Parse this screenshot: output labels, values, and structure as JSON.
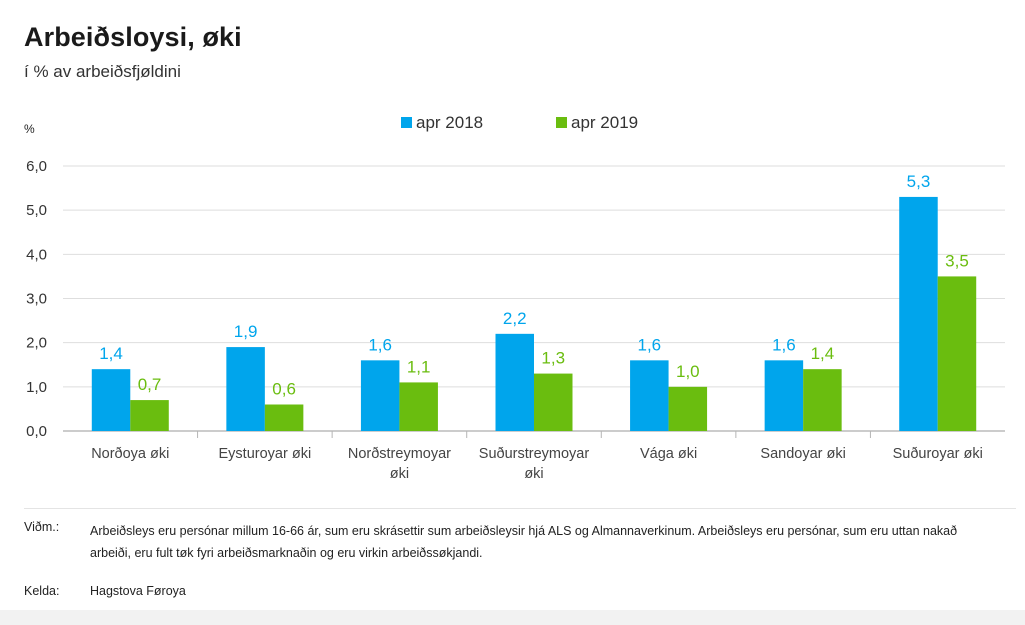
{
  "header": {
    "title": "Arbeiðsloysi, øki",
    "subtitle": "í % av arbeiðsfjøldini"
  },
  "chart_data": {
    "type": "bar",
    "ylabel": "%",
    "ylim": [
      0,
      6
    ],
    "yticks": [
      "0,0",
      "1,0",
      "2,0",
      "3,0",
      "4,0",
      "5,0",
      "6,0"
    ],
    "grid": true,
    "legend_position": "top-center",
    "categories": [
      [
        "Norðoya øki"
      ],
      [
        "Eysturoyar øki"
      ],
      [
        "Norðstreymoyar",
        "øki"
      ],
      [
        "Suðurstreymoyar",
        "øki"
      ],
      [
        "Vága øki"
      ],
      [
        "Sandoyar øki"
      ],
      [
        "Suðuroyar øki"
      ]
    ],
    "series": [
      {
        "name": "apr 2018",
        "color": "#00a5ec",
        "values": [
          1.4,
          1.9,
          1.6,
          2.2,
          1.6,
          1.6,
          5.3
        ],
        "labels": [
          "1,4",
          "1,9",
          "1,6",
          "2,2",
          "1,6",
          "1,6",
          "5,3"
        ]
      },
      {
        "name": "apr 2019",
        "color": "#6abd0f",
        "values": [
          0.7,
          0.6,
          1.1,
          1.3,
          1.0,
          1.4,
          3.5
        ],
        "labels": [
          "0,7",
          "0,6",
          "1,1",
          "1,3",
          "1,0",
          "1,4",
          "3,5"
        ]
      }
    ]
  },
  "notes": {
    "note_label": "Viðm.:",
    "note_text": "Arbeiðsleys eru persónar millum 16-66 ár, sum eru skrásettir sum arbeiðsleysir hjá ALS og Almannaverkinum. Arbeiðsleys eru persónar, sum eru uttan nakað arbeiði, eru fult tøk fyri arbeiðsmarknaðin og eru virkin arbeiðssøkjandi.",
    "source_label": "Kelda:",
    "source_text": "Hagstova Føroya"
  }
}
